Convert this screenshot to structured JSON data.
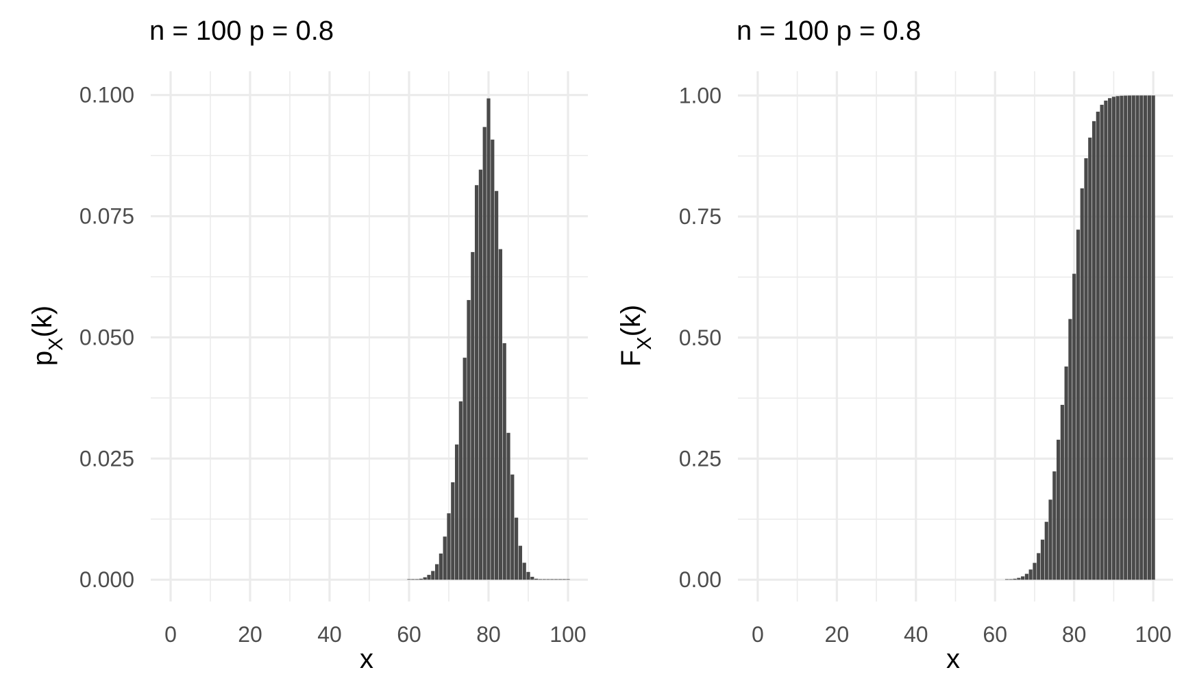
{
  "chart_data": [
    {
      "type": "bar",
      "title": "n = 100 p = 0.8",
      "xlabel": "x",
      "ylabel": {
        "main": "p",
        "sub": "X",
        "tail": "(k)"
      },
      "xlim": [
        -5,
        105
      ],
      "ylim": [
        -0.0045,
        0.1049
      ],
      "xticks": [
        0,
        20,
        40,
        60,
        80,
        100
      ],
      "xtick_labels": [
        "0",
        "20",
        "40",
        "60",
        "80",
        "100"
      ],
      "yticks": [
        0,
        0.025,
        0.05,
        0.075,
        0.1
      ],
      "ytick_labels": [
        "0.000",
        "0.025",
        "0.050",
        "0.075",
        "0.100"
      ],
      "grid": true,
      "bar_color": "#4a4a4a",
      "x": [
        60,
        61,
        62,
        63,
        64,
        65,
        66,
        67,
        68,
        69,
        70,
        71,
        72,
        73,
        74,
        75,
        76,
        77,
        78,
        79,
        80,
        81,
        82,
        83,
        84,
        85,
        86,
        87,
        88,
        89,
        90,
        91,
        92,
        93,
        94,
        95,
        96,
        97,
        98,
        99,
        100
      ],
      "values": [
        0.0,
        0.0001,
        0.0001,
        0.0002,
        0.0005,
        0.001,
        0.0018,
        0.0032,
        0.0054,
        0.0089,
        0.0137,
        0.0201,
        0.0279,
        0.0368,
        0.0458,
        0.0577,
        0.0676,
        0.0814,
        0.0846,
        0.0934,
        0.0993,
        0.0908,
        0.0802,
        0.0682,
        0.0488,
        0.0303,
        0.0217,
        0.0128,
        0.007,
        0.0035,
        0.0016,
        0.0006,
        0.0002,
        0.0001,
        0.0,
        0.0,
        0.0,
        0.0,
        0.0,
        0.0,
        0.0
      ]
    },
    {
      "type": "bar",
      "title": "n = 100 p = 0.8",
      "xlabel": "x",
      "ylabel": {
        "main": "F",
        "sub": "X",
        "tail": "(k)"
      },
      "xlim": [
        -5,
        105
      ],
      "ylim": [
        -0.045,
        1.05
      ],
      "xticks": [
        0,
        20,
        40,
        60,
        80,
        100
      ],
      "xtick_labels": [
        "0",
        "20",
        "40",
        "60",
        "80",
        "100"
      ],
      "yticks": [
        0,
        0.25,
        0.5,
        0.75,
        1.0
      ],
      "ytick_labels": [
        "0.00",
        "0.25",
        "0.50",
        "0.75",
        "1.00"
      ],
      "grid": true,
      "bar_color": "#4a4a4a",
      "x": [
        63,
        64,
        65,
        66,
        67,
        68,
        69,
        70,
        71,
        72,
        73,
        74,
        75,
        76,
        77,
        78,
        79,
        80,
        81,
        82,
        83,
        84,
        85,
        86,
        87,
        88,
        89,
        90,
        91,
        92,
        93,
        94,
        95,
        96,
        97,
        98,
        99,
        100
      ],
      "values": [
        0.0005,
        0.001,
        0.002,
        0.0038,
        0.0069,
        0.0122,
        0.0211,
        0.0348,
        0.0549,
        0.0828,
        0.1196,
        0.1654,
        0.2237,
        0.2891,
        0.3611,
        0.4403,
        0.5384,
        0.6318,
        0.7229,
        0.8082,
        0.8704,
        0.913,
        0.947,
        0.9665,
        0.9808,
        0.9894,
        0.9945,
        0.9973,
        0.9987,
        0.9994,
        0.9997,
        0.9999,
        1.0,
        1.0,
        1.0,
        1.0,
        1.0,
        1.0
      ]
    }
  ]
}
